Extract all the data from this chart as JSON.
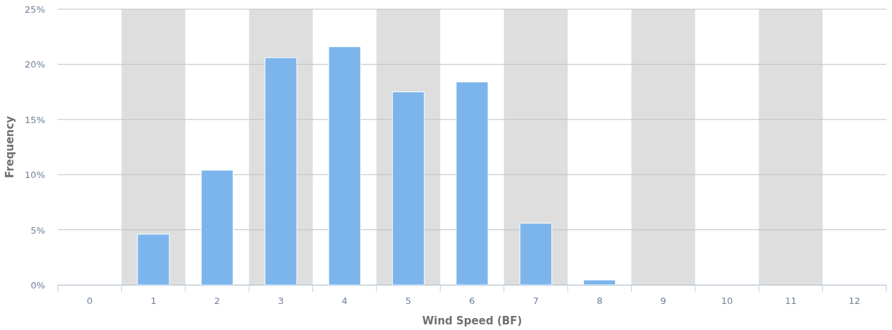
{
  "chart_data": {
    "type": "bar",
    "xlabel": "Wind Speed (BF)",
    "ylabel": "Frequency",
    "categories": [
      "0",
      "1",
      "2",
      "3",
      "4",
      "5",
      "6",
      "7",
      "8",
      "9",
      "10",
      "11",
      "12"
    ],
    "values": [
      0,
      4.6,
      10.4,
      20.6,
      21.6,
      17.5,
      18.4,
      5.6,
      0.45,
      0,
      0,
      0,
      0
    ],
    "color": "#7cb5ec",
    "ylim": [
      0,
      25
    ],
    "yticks": [
      {
        "value": 0,
        "label": "0%"
      },
      {
        "value": 5,
        "label": "5%"
      },
      {
        "value": 10,
        "label": "10%"
      },
      {
        "value": 15,
        "label": "15%"
      },
      {
        "value": 20,
        "label": "20%"
      },
      {
        "value": 25,
        "label": "25%"
      }
    ],
    "grid": "y",
    "bands": [
      {
        "axis": "x",
        "from": "1",
        "to": "1",
        "color": "#dedede"
      },
      {
        "axis": "x",
        "from": "3",
        "to": "3",
        "color": "#dedede"
      },
      {
        "axis": "x",
        "from": "5",
        "to": "5",
        "color": "#dedede"
      },
      {
        "axis": "x",
        "from": "7",
        "to": "7",
        "color": "#dedede"
      },
      {
        "axis": "x",
        "from": "9",
        "to": "9",
        "color": "#dedede"
      },
      {
        "axis": "x",
        "from": "11",
        "to": "11",
        "color": "#dedede"
      }
    ]
  }
}
